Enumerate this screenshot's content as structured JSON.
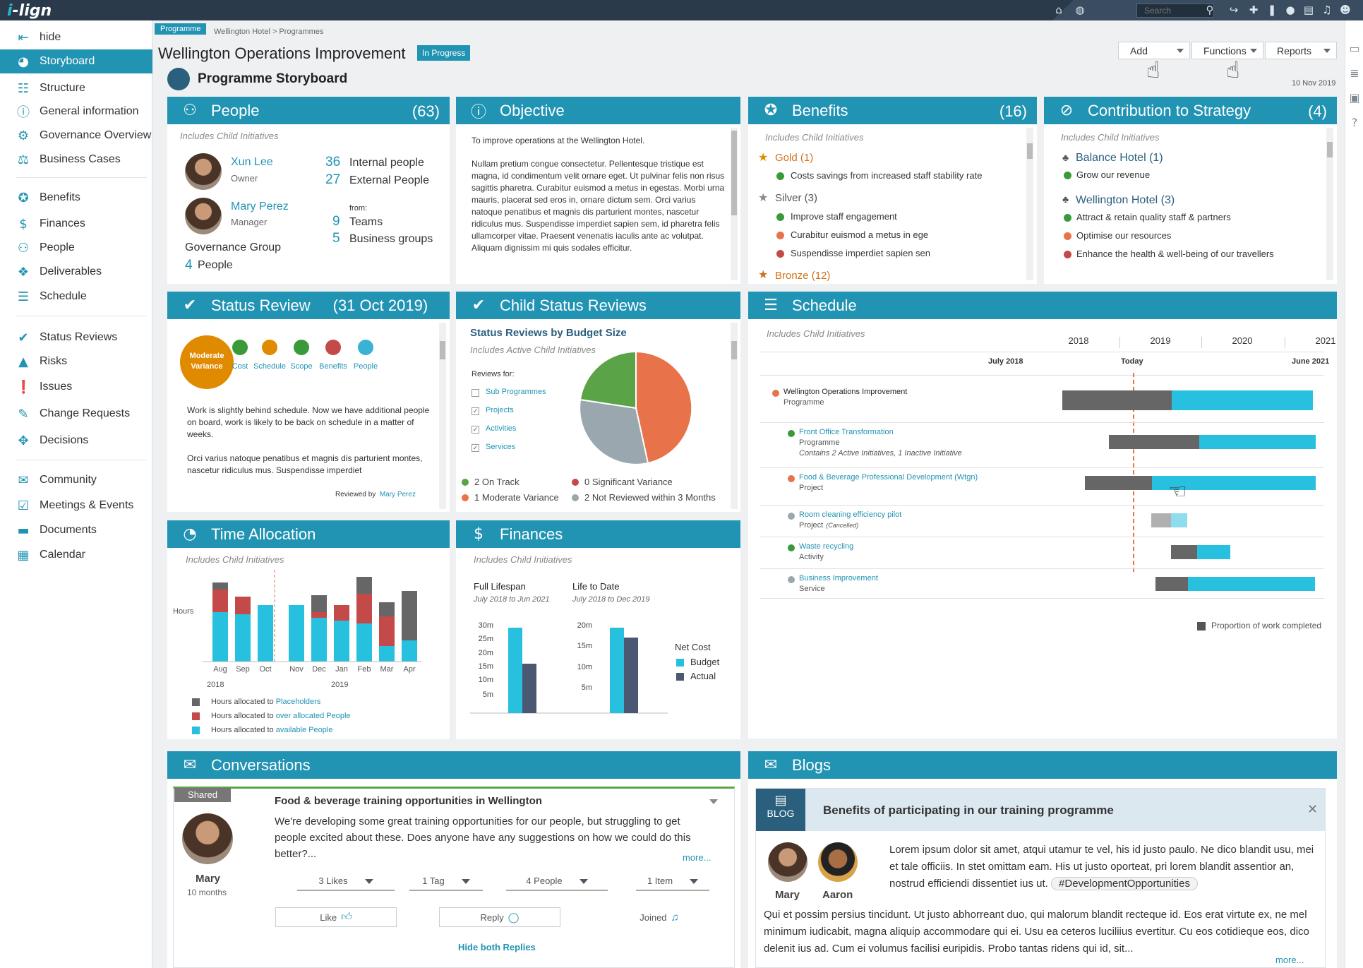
{
  "topbar": {
    "logo_prefix": "i",
    "logo_rest": "-lign",
    "search_placeholder": "Search"
  },
  "sidebar": {
    "hide_label": "hide",
    "items": [
      {
        "label": "Storyboard",
        "icon": "palette-icon"
      },
      {
        "label": "Structure",
        "icon": "structure-icon"
      },
      {
        "label": "General information",
        "icon": "info-icon"
      },
      {
        "label": "Governance Overview",
        "icon": "governance-icon"
      },
      {
        "label": "Business Cases",
        "icon": "scales-icon"
      },
      {
        "label": "Benefits",
        "icon": "award-icon"
      },
      {
        "label": "Finances",
        "icon": "dollar-icon"
      },
      {
        "label": "People",
        "icon": "people-icon"
      },
      {
        "label": "Deliverables",
        "icon": "cubes-icon"
      },
      {
        "label": "Schedule",
        "icon": "schedule-icon"
      },
      {
        "label": "Status Reviews",
        "icon": "checks-icon"
      },
      {
        "label": "Risks",
        "icon": "warning-icon"
      },
      {
        "label": "Issues",
        "icon": "exclamation-icon"
      },
      {
        "label": "Change Requests",
        "icon": "edit-icon"
      },
      {
        "label": "Decisions",
        "icon": "arrows-icon"
      },
      {
        "label": "Community",
        "icon": "chat-icon"
      },
      {
        "label": "Meetings & Events",
        "icon": "calendar-check-icon"
      },
      {
        "label": "Documents",
        "icon": "folder-icon"
      },
      {
        "label": "Calendar",
        "icon": "calendar-icon"
      }
    ]
  },
  "header": {
    "tag": "Programme",
    "breadcrumb": "Wellington Hotel > Programmes",
    "title": "Wellington Operations Improvement",
    "status": "In Progress",
    "storyboard_title": "Programme Storyboard",
    "date": "10 Nov 2019",
    "buttons": {
      "add": "Add",
      "functions": "Functions",
      "reports": "Reports"
    }
  },
  "people": {
    "title": "People",
    "count": "(63)",
    "note": "Includes Child Initiatives",
    "person1": {
      "name": "Xun Lee",
      "role": "Owner"
    },
    "person2": {
      "name": "Mary Perez",
      "role": "Manager"
    },
    "group_label": "Governance Group",
    "group_num": "4",
    "group_unit": "People",
    "internal_num": "36",
    "internal_label": "Internal people",
    "external_num": "27",
    "external_label": "External People",
    "from_label": "from:",
    "teams_num": "9",
    "teams_label": "Teams",
    "bg_num": "5",
    "bg_label": "Business groups"
  },
  "objective": {
    "title": "Objective",
    "line1": "To improve operations at the Wellington Hotel.",
    "body": "Nullam pretium congue consectetur. Pellentesque tristique est magna, id condimentum velit ornare eget. Ut pulvinar felis non risus sagittis pharetra. Curabitur euismod a metus in egestas. Morbi urna mauris, placerat sed eros in, ornare dictum sem. Orci varius natoque penatibus et magnis dis parturient montes, nascetur ridiculus mus. Suspendisse imperdiet sapien sem, id pharetra felis ullamcorper vitae. Praesent venenatis iaculis ante ac volutpat. Aliquam dignissim mi quis sodales efficitur."
  },
  "benefits": {
    "title": "Benefits",
    "count": "(16)",
    "note": "Includes Child Initiatives",
    "gold": "Gold (1)",
    "gold_items": [
      "Costs savings from increased staff stability rate"
    ],
    "silver": "Silver (3)",
    "silver_items": [
      "Improve staff engagement",
      "Curabitur euismod a metus in ege",
      "Suspendisse imperdiet sapien sen"
    ],
    "bronze": "Bronze (12)"
  },
  "contribution": {
    "title": "Contribution to Strategy",
    "count": "(4)",
    "note": "Includes Child Initiatives",
    "group1": "Balance Hotel (1)",
    "group1_items": [
      "Grow our revenue"
    ],
    "group2": "Wellington Hotel (3)",
    "group2_items": [
      "Attract & retain quality staff & partners",
      "Optimise our resources",
      "Enhance the health & well-being of our travellers"
    ]
  },
  "status_review": {
    "title": "Status Review",
    "date": "(31 Oct 2019)",
    "overall": "Moderate Variance",
    "indicators": [
      {
        "label": "Cost",
        "color": "#3a9a3a"
      },
      {
        "label": "Schedule",
        "color": "#e08a00"
      },
      {
        "label": "Scope",
        "color": "#3a9a3a"
      },
      {
        "label": "Benefits",
        "color": "#c44a4a"
      },
      {
        "label": "People",
        "color": "#3ab2d4"
      }
    ],
    "para1": "Work is slightly behind schedule. Now we have additional people on board, work is likely to be back on schedule in a matter of weeks.",
    "para2": "Orci varius natoque penatibus et magnis dis parturient montes, nascetur ridiculus mus. Suspendisse imperdiet",
    "reviewed_by": "Reviewed by",
    "reviewer": "Mary Perez"
  },
  "child_status": {
    "title": "Child Status Reviews",
    "chart_title": "Status Reviews by Budget Size",
    "note": "Includes Active Child Initiatives",
    "reviews_for": "Reviews for:",
    "checks": [
      {
        "label": "Sub Programmes",
        "checked": false
      },
      {
        "label": "Projects",
        "checked": true
      },
      {
        "label": "Activities",
        "checked": true
      },
      {
        "label": "Services",
        "checked": true
      }
    ],
    "legend": [
      {
        "label": "2 On Track",
        "color": "#5aa347"
      },
      {
        "label": "0 Significant Variance",
        "color": "#c44a4a"
      },
      {
        "label": "1 Moderate Variance",
        "color": "#e8734a"
      },
      {
        "label": "2 Not Reviewed within 3 Months",
        "color": "#9aa7ae"
      }
    ]
  },
  "schedule": {
    "title": "Schedule",
    "note": "Includes Child Initiatives",
    "years": [
      "2018",
      "2019",
      "2020",
      "2021"
    ],
    "start_label": "July 2018",
    "today_label": "Today",
    "end_label": "June 2021",
    "rows": [
      {
        "name": "Wellington Operations Improvement",
        "type": "Programme",
        "extra": "",
        "color": "#e8734a",
        "link": false
      },
      {
        "name": "Front Office Transformation",
        "type": "Programme",
        "extra": "Contains 2 Active Initiatives, 1 Inactive Initiative",
        "color": "#3a9a3a",
        "link": true
      },
      {
        "name": "Food & Beverage Professional Development (Wtgn)",
        "type": "Project",
        "extra": "",
        "color": "#e8734a",
        "link": true
      },
      {
        "name": "Room cleaning efficiency pilot",
        "type": "Project",
        "extra": "(Cancelled)",
        "color": "#9aa7ae",
        "link": true
      },
      {
        "name": "Waste recycling",
        "type": "Activity",
        "extra": "",
        "color": "#3a9a3a",
        "link": true
      },
      {
        "name": "Business Improvement",
        "type": "Service",
        "extra": "",
        "color": "#9aa7ae",
        "link": true
      }
    ],
    "legend": "Proportion of work completed"
  },
  "time_allocation": {
    "title": "Time Allocation",
    "note": "Includes Child Initiatives",
    "ylabel": "Hours",
    "year1": "2018",
    "year2": "2019",
    "legend": [
      {
        "pre": "Hours allocated to ",
        "link": "Placeholders",
        "color": "#666"
      },
      {
        "pre": "Hours allocated to ",
        "link": "over allocated People",
        "color": "#c44a4a"
      },
      {
        "pre": "Hours allocated to ",
        "link": "available People",
        "color": "#27c0de"
      }
    ]
  },
  "finances": {
    "title": "Finances",
    "note": "Includes Child Initiatives",
    "full_title": "Full Lifespan",
    "full_range": "July 2018 to Jun 2021",
    "ltd_title": "Life to Date",
    "ltd_range": "July 2018 to Dec 2019",
    "legend_title": "Net Cost",
    "legend_budget": "Budget",
    "legend_actual": "Actual",
    "full_ticks": [
      "30m",
      "25m",
      "20m",
      "15m",
      "10m",
      "5m"
    ],
    "ltd_ticks": [
      "20m",
      "15m",
      "10m",
      "5m"
    ]
  },
  "conversations": {
    "title": "Conversations",
    "shared": "Shared",
    "post_title": "Food & beverage training opportunities in Wellington",
    "post_body": "We're developing some great training opportunities for our people, but struggling to get people excited about these. Does anyone have any suggestions on how we could do this better?...",
    "more": "more...",
    "author": "Mary",
    "age": "10 months",
    "likes": "3 Likes",
    "tags": "1 Tag",
    "people": "4 People",
    "items": "1 Item",
    "like": "Like",
    "reply": "Reply",
    "joined": "Joined",
    "hide_replies": "Hide both Replies"
  },
  "blogs": {
    "title": "Blogs",
    "badge": "BLOG",
    "post_title": "Benefits of participating in our training programme",
    "author1": "Mary",
    "author2": "Aaron",
    "body1": "Lorem ipsum dolor sit amet, atqui utamur te vel, his id justo paulo. Ne dico blandit usu, mei et tale officiis. In stet omittam eam. His ut justo oporteat, pri lorem blandit assentior an, nostrud efficiendi dissentiet ius ut.",
    "hashtag": "#DevelopmentOpportunities",
    "body2": "Qui et possim persius tincidunt. Ut justo abhorreant duo, qui malorum blandit recteque id. Eos erat virtute ex, ne mel minimum iudicabit, magna aliquip accommodare qui ei. Usu ea ceteros luciliius evertitur. Cu eos cotidieque eos, dico delenit ius ad. Cum ei volumus facilisi euripidis. Probo tantas ridens qui id, sit...",
    "more": "more..."
  }
}
